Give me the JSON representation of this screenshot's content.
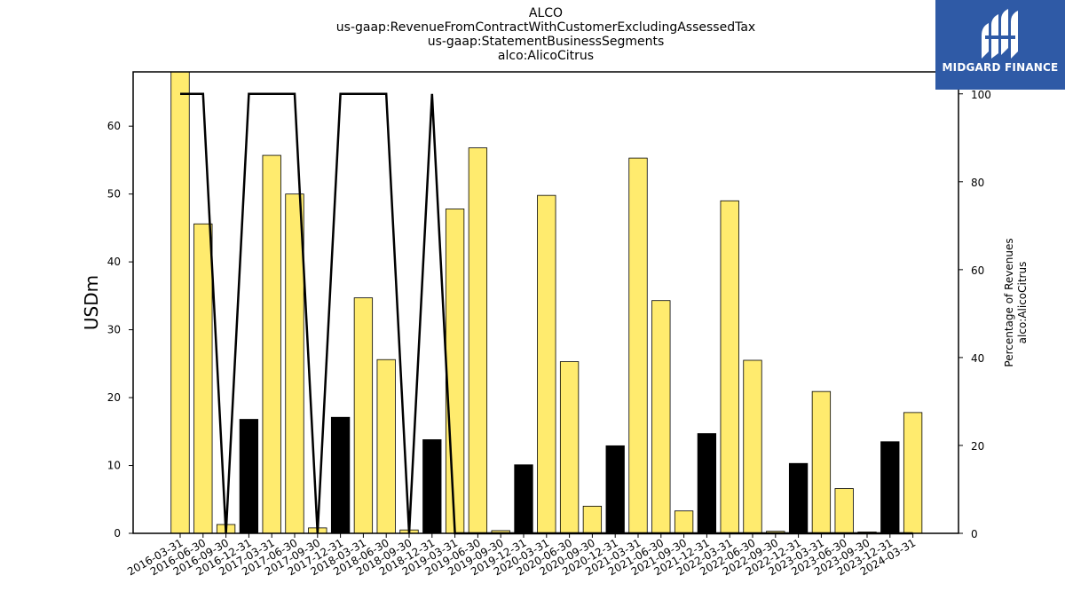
{
  "header": {
    "title_lines": [
      "ALCO",
      "us-gaap:RevenueFromContractWithCustomerExcludingAssessedTax",
      "us-gaap:StatementBusinessSegments",
      "alco:AlicoCitrus"
    ]
  },
  "logo": {
    "text": "MIDGARD FINANCE",
    "background": "#2f5aa6"
  },
  "chart_data": {
    "type": "bar",
    "ylabel": "USDm",
    "ylabel_right": [
      "Percentage of Revenues",
      "alco:AlicoCitrus"
    ],
    "ylim": [
      0,
      68
    ],
    "ylim_right": [
      0,
      105
    ],
    "yticks": [
      "0",
      "10",
      "20",
      "30",
      "40",
      "50",
      "60"
    ],
    "yticks_right": [
      "0",
      "20",
      "40",
      "60",
      "80",
      "100"
    ],
    "grid": false,
    "categories": [
      "2016-03-31",
      "2016-06-30",
      "2016-09-30",
      "2016-12-31",
      "2017-03-31",
      "2017-06-30",
      "2017-09-30",
      "2017-12-31",
      "2018-03-31",
      "2018-06-30",
      "2018-09-30",
      "2018-12-31",
      "2019-03-31",
      "2019-06-30",
      "2019-09-30",
      "2019-12-31",
      "2020-03-31",
      "2020-06-30",
      "2020-09-30",
      "2020-12-31",
      "2021-03-31",
      "2021-06-30",
      "2021-09-30",
      "2021-12-31",
      "2022-03-31",
      "2022-06-30",
      "2022-09-30",
      "2022-12-31",
      "2023-03-31",
      "2023-06-30",
      "2023-09-30",
      "2023-12-31",
      "2024-03-31"
    ],
    "series": [
      {
        "type": "bar",
        "values": [
          68,
          45.6,
          1.3,
          16.8,
          55.7,
          50.0,
          0.8,
          17.1,
          34.7,
          25.6,
          0.5,
          13.8,
          47.8,
          56.8,
          0.4,
          10.1,
          49.8,
          25.3,
          4.0,
          12.9,
          55.3,
          34.3,
          3.3,
          14.7,
          49.0,
          25.5,
          0.3,
          10.3,
          20.9,
          6.6,
          0.2,
          13.5,
          17.8
        ],
        "colors": [
          "#ffeb6e",
          "#ffeb6e",
          "#ffeb6e",
          "#000000",
          "#ffeb6e",
          "#ffeb6e",
          "#ffeb6e",
          "#000000",
          "#ffeb6e",
          "#ffeb6e",
          "#ffeb6e",
          "#000000",
          "#ffeb6e",
          "#ffeb6e",
          "#ffeb6e",
          "#000000",
          "#ffeb6e",
          "#ffeb6e",
          "#ffeb6e",
          "#000000",
          "#ffeb6e",
          "#ffeb6e",
          "#ffeb6e",
          "#000000",
          "#ffeb6e",
          "#ffeb6e",
          "#ffeb6e",
          "#000000",
          "#ffeb6e",
          "#ffeb6e",
          "#ffeb6e",
          "#000000",
          "#ffeb6e"
        ]
      },
      {
        "type": "line",
        "axis": "right",
        "color": "#000000",
        "values": [
          100,
          100,
          0,
          100,
          100,
          100,
          0,
          100,
          100,
          100,
          0,
          100,
          0,
          0,
          0,
          0,
          0,
          0,
          0,
          0,
          0,
          0,
          0,
          0,
          0,
          0,
          0,
          0,
          0,
          0,
          0,
          0,
          0
        ]
      }
    ]
  }
}
